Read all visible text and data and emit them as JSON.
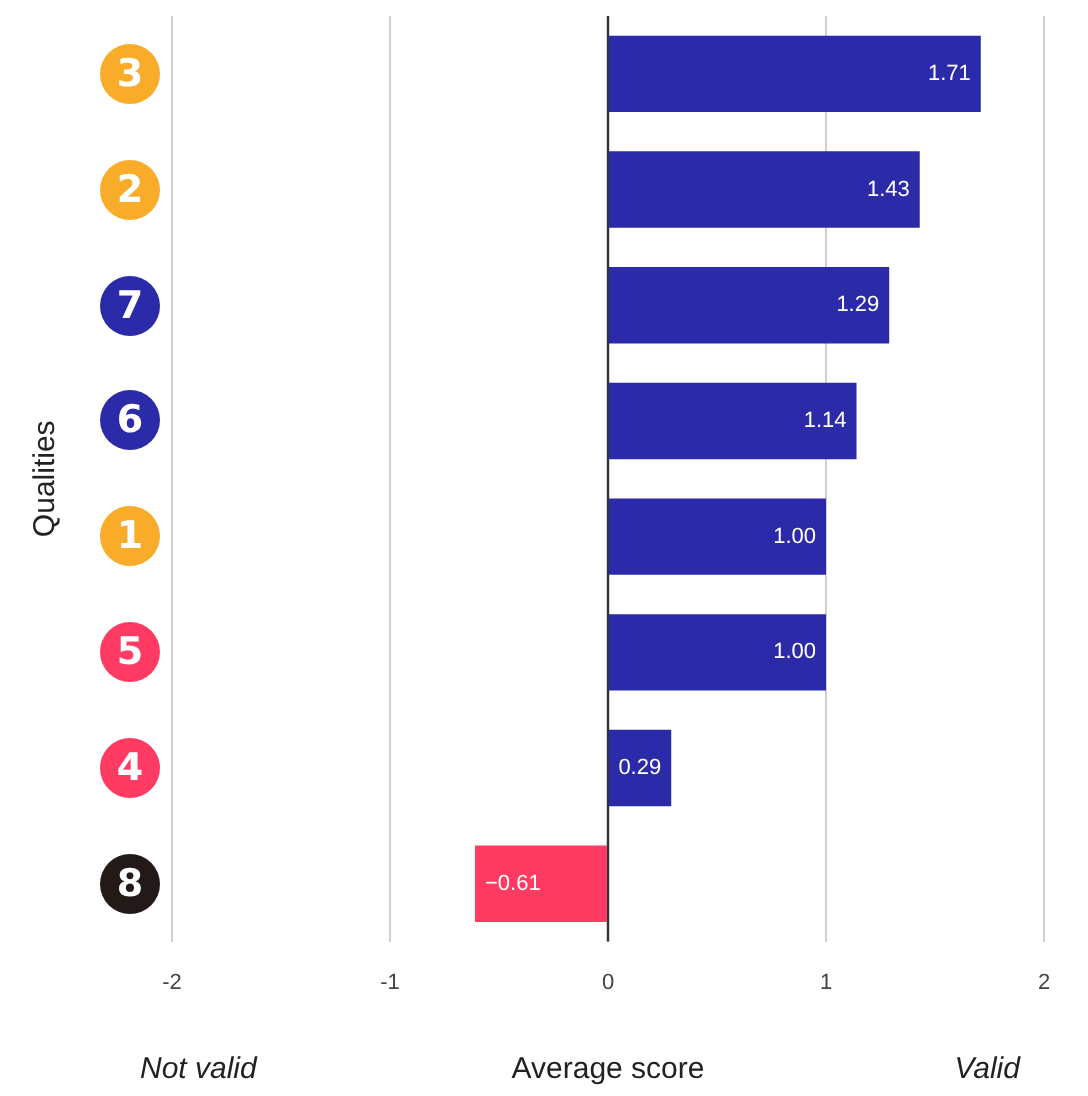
{
  "chart_data": {
    "type": "bar",
    "orientation": "horizontal",
    "xlabel": "Average score",
    "ylabel": "Qualities",
    "categories": [
      "3",
      "2",
      "7",
      "6",
      "1",
      "5",
      "4",
      "8"
    ],
    "values": [
      1.71,
      1.43,
      1.29,
      1.14,
      1.0,
      1.0,
      0.29,
      -0.61
    ],
    "colors": [
      "#2b2aa8",
      "#2b2aa8",
      "#2b2aa8",
      "#2b2aa8",
      "#2b2aa8",
      "#2b2aa8",
      "#2b2aa8",
      "#ff3b63"
    ],
    "value_labels": [
      "1.71",
      "1.43",
      "1.29",
      "1.14",
      "1.00",
      "1.00",
      "0.29",
      "−0.61"
    ],
    "xlim": [
      -2,
      2
    ],
    "xticks": [
      -2,
      -1,
      0,
      1,
      2
    ],
    "grid": "x",
    "legend": false,
    "annotations": [
      "Not valid",
      "Valid"
    ]
  }
}
